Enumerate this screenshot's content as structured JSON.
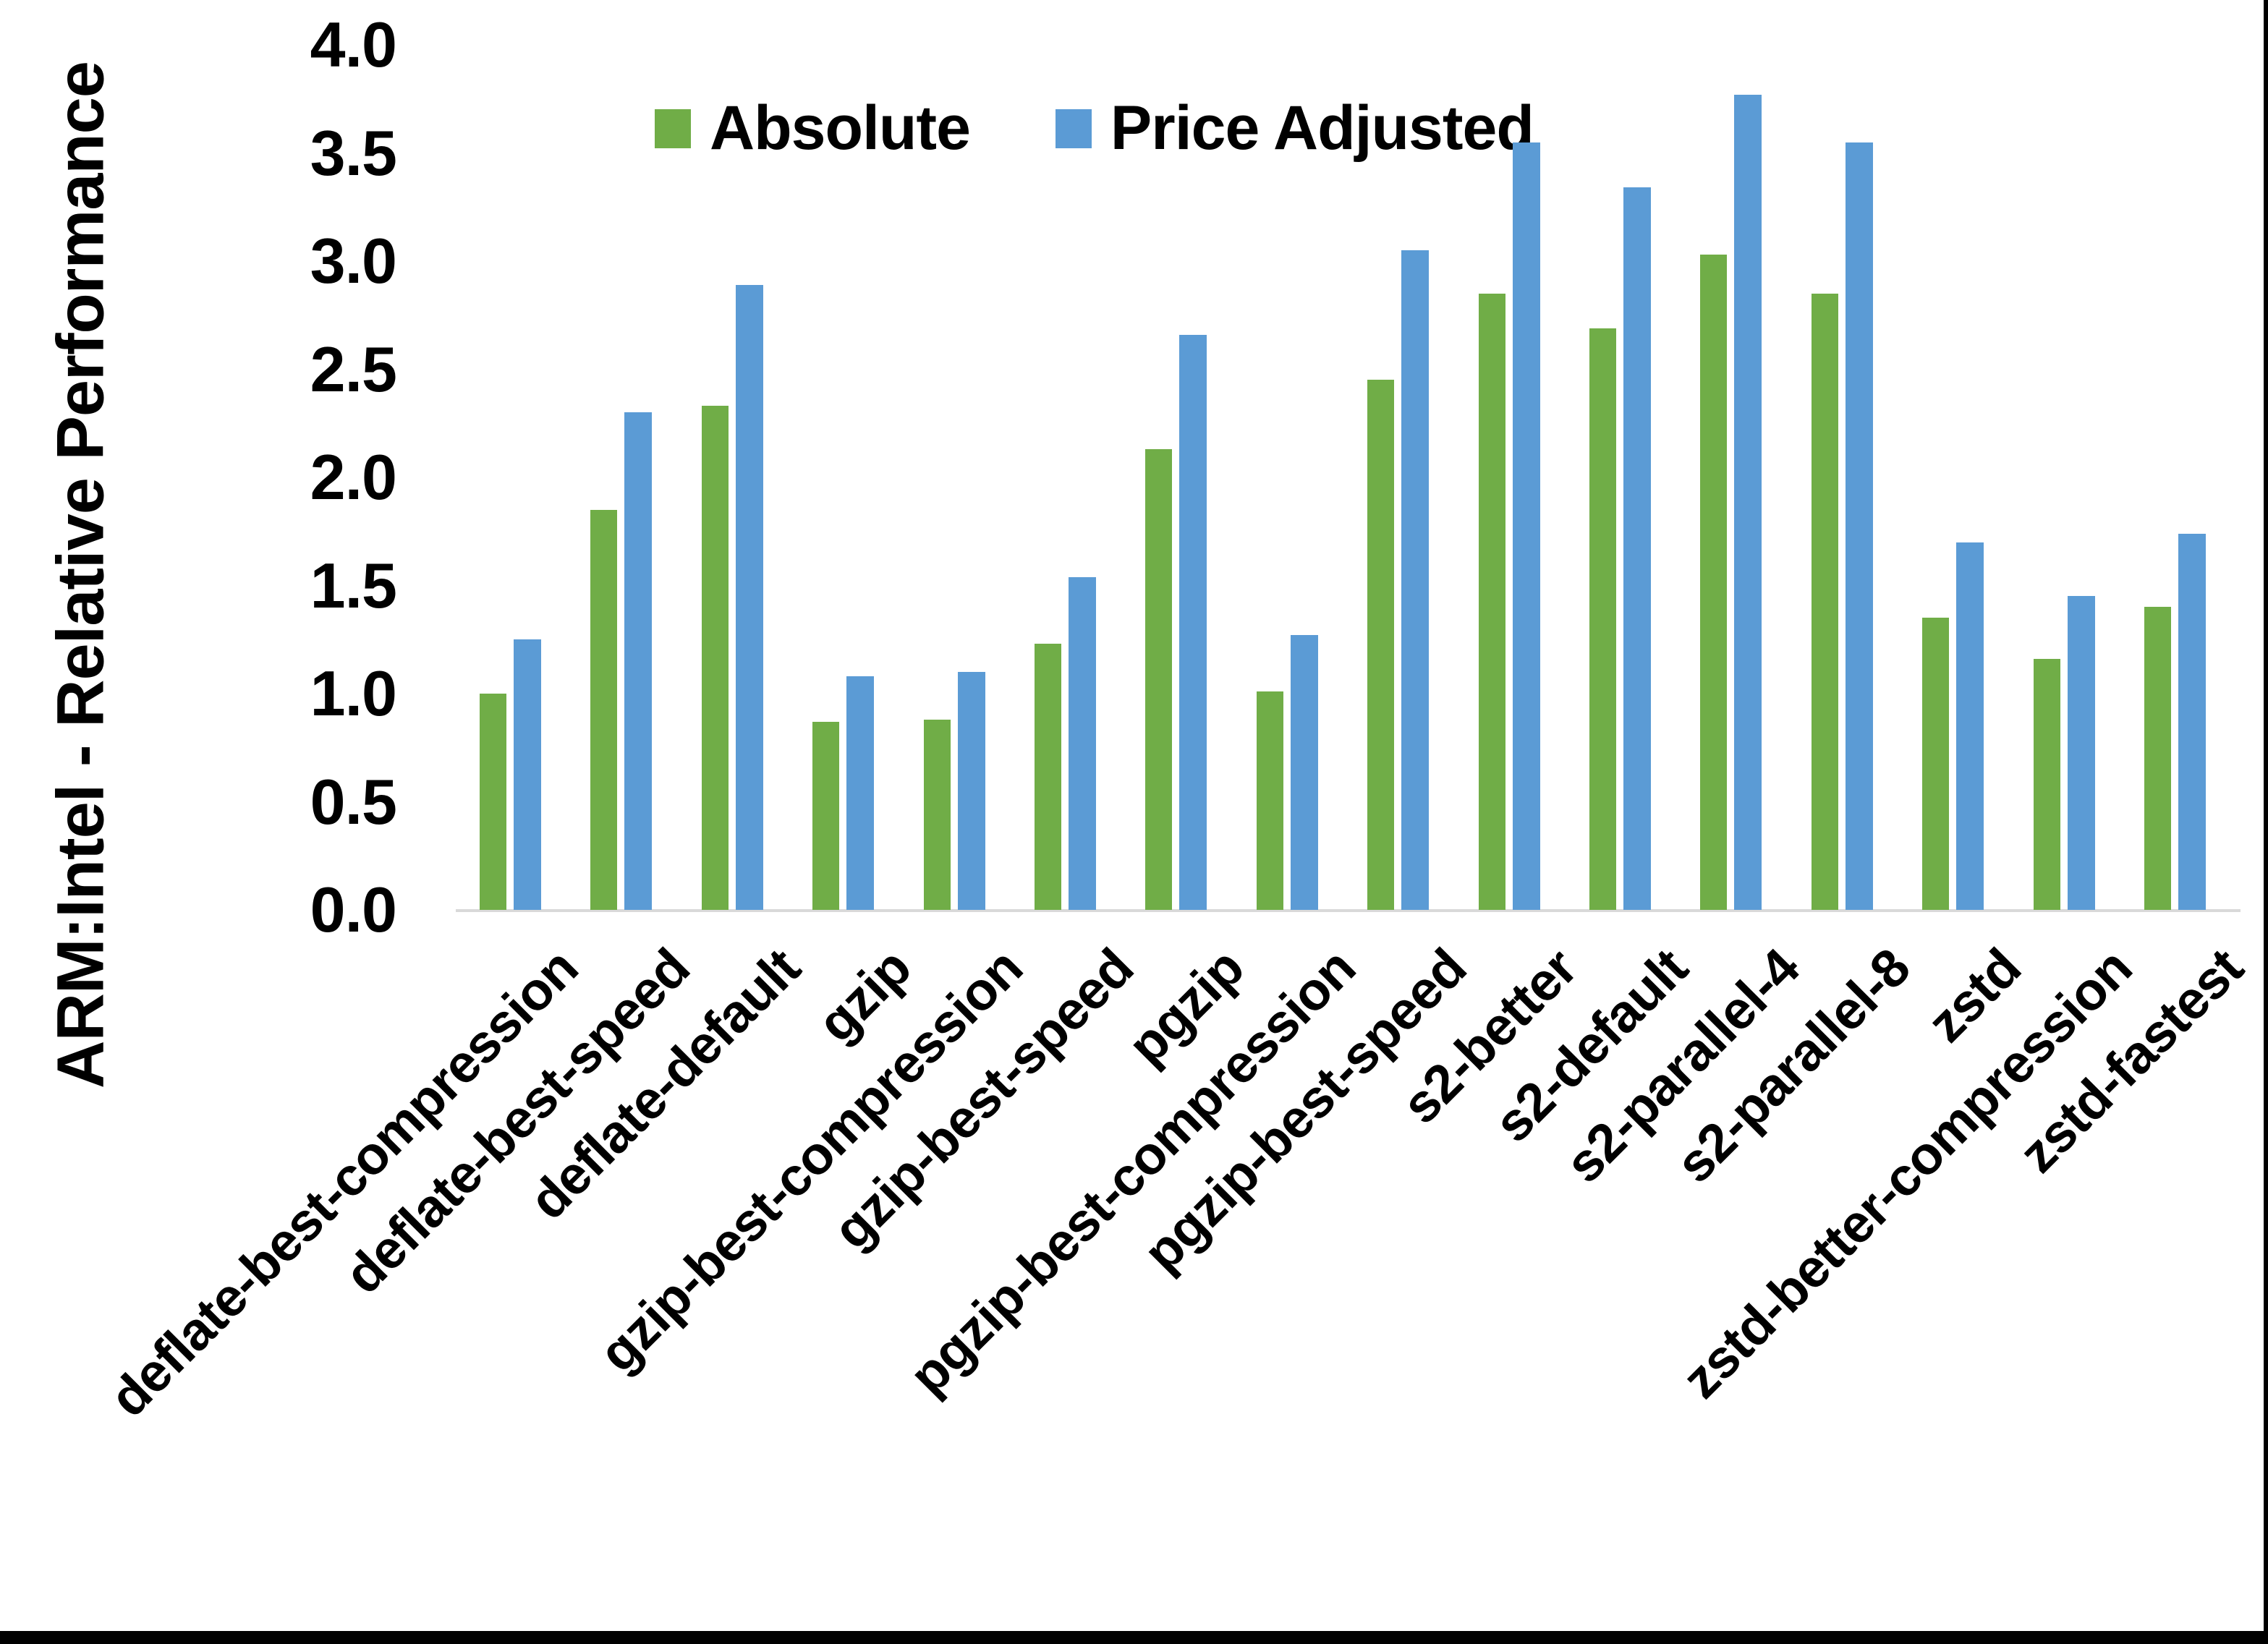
{
  "window": {
    "background": "#FFFFFF",
    "border_right_color": "#000000",
    "border_bottom_color": "#000000"
  },
  "chart_data": {
    "type": "bar",
    "title": "",
    "ylabel": "ARM:Intel - Relative Performance",
    "xlabel": "",
    "ylim": [
      0.0,
      4.0
    ],
    "ytick_step": 0.5,
    "ytick_labels": [
      "0.0",
      "0.5",
      "1.0",
      "1.5",
      "2.0",
      "2.5",
      "3.0",
      "3.5",
      "4.0"
    ],
    "grid": false,
    "legend_position": "top",
    "axis_line_color": "#D9D9D9",
    "categories": [
      "deflate-best-compression",
      "deflate-best-speed",
      "deflate-default",
      "gzip",
      "gzip-best-compression",
      "gzip-best-speed",
      "pgzip",
      "pgzip-best-compression",
      "pgzip-best-speed",
      "s2-better",
      "s2-default",
      "s2-parallel-4",
      "s2-parallel-8",
      "zstd",
      "zstd-better-compression",
      "zstd-fastest"
    ],
    "series": [
      {
        "name": "Absolute",
        "color": "#70AD47",
        "values": [
          1.0,
          1.85,
          2.33,
          0.87,
          0.88,
          1.23,
          2.13,
          1.01,
          2.45,
          2.85,
          2.69,
          3.03,
          2.85,
          1.35,
          1.16,
          1.4
        ]
      },
      {
        "name": "Price Adjusted",
        "color": "#5B9BD5",
        "values": [
          1.25,
          2.3,
          2.89,
          1.08,
          1.1,
          1.54,
          2.66,
          1.27,
          3.05,
          3.55,
          3.34,
          3.77,
          3.55,
          1.7,
          1.45,
          1.74
        ]
      }
    ]
  }
}
